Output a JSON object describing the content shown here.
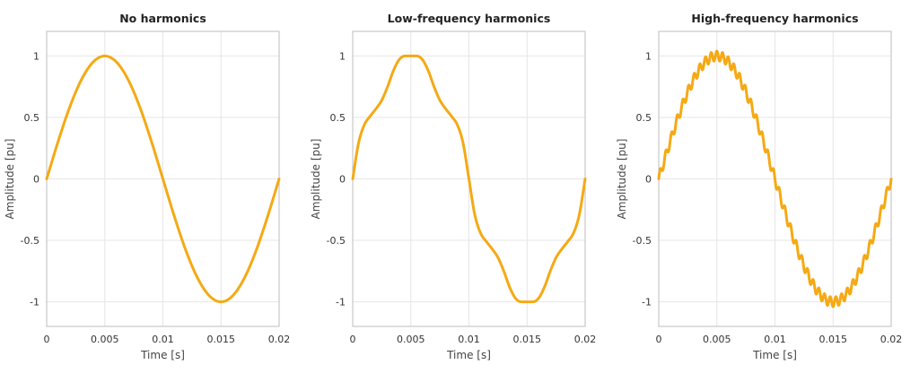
{
  "chart_data": [
    {
      "type": "line",
      "title": "No harmonics",
      "xlabel": "Time [s]",
      "ylabel": "Amplitude [pu]",
      "xlim": [
        0,
        0.02
      ],
      "ylim": [
        -1.2,
        1.2
      ],
      "x_ticks": [
        0,
        0.005,
        0.01,
        0.015,
        0.02
      ],
      "x_tick_labels": [
        "0",
        "0.005",
        "0.01",
        "0.015",
        "0.02"
      ],
      "y_ticks": [
        1,
        0.5,
        0,
        -0.5,
        -1
      ],
      "y_tick_labels": [
        "1",
        "0.5",
        "0",
        "-0.5",
        "-1"
      ],
      "grid": true,
      "color": "#f5a914",
      "series": [
        {
          "x": [
            0,
            0.001,
            0.002,
            0.003,
            0.004,
            0.005,
            0.006,
            0.007,
            0.008,
            0.009,
            0.01,
            0.011,
            0.012,
            0.013,
            0.014,
            0.015,
            0.016,
            0.017,
            0.018,
            0.019,
            0.02
          ],
          "values": [
            0,
            0.309,
            0.588,
            0.809,
            0.951,
            1.0,
            0.951,
            0.809,
            0.588,
            0.309,
            0,
            -0.309,
            -0.588,
            -0.809,
            -0.951,
            -1.0,
            -0.951,
            -0.809,
            -0.588,
            -0.309,
            0
          ]
        }
      ]
    },
    {
      "type": "line",
      "title": "Low-frequency harmonics",
      "xlabel": "Time [s]",
      "ylabel": "Amplitude [pu]",
      "xlim": [
        0,
        0.02
      ],
      "ylim": [
        -1.2,
        1.2
      ],
      "x_ticks": [
        0,
        0.005,
        0.01,
        0.015,
        0.02
      ],
      "x_tick_labels": [
        "0",
        "0.005",
        "0.01",
        "0.015",
        "0.02"
      ],
      "y_ticks": [
        1,
        0.5,
        0,
        -0.5,
        -1
      ],
      "y_tick_labels": [
        "1",
        "0.5",
        "0",
        "-0.5",
        "-1"
      ],
      "grid": true,
      "color": "#f5a914",
      "series": [
        {
          "x": [
            0,
            0.0005,
            0.001,
            0.0015,
            0.002,
            0.0025,
            0.003,
            0.0035,
            0.004,
            0.0045,
            0.005,
            0.0055,
            0.006,
            0.0065,
            0.007,
            0.0075,
            0.008,
            0.0085,
            0.009,
            0.0095,
            0.01,
            0.0105,
            0.011,
            0.0115,
            0.012,
            0.0125,
            0.013,
            0.0135,
            0.014,
            0.0145,
            0.015,
            0.0155,
            0.016,
            0.0165,
            0.017,
            0.0175,
            0.018,
            0.0185,
            0.019,
            0.0195,
            0.02
          ],
          "values": [
            0,
            0.29,
            0.44,
            0.51,
            0.57,
            0.64,
            0.75,
            0.88,
            0.97,
            1.0,
            1.0,
            1.0,
            0.97,
            0.88,
            0.75,
            0.64,
            0.57,
            0.51,
            0.44,
            0.29,
            0,
            -0.29,
            -0.44,
            -0.51,
            -0.57,
            -0.64,
            -0.75,
            -0.88,
            -0.97,
            -1.0,
            -1.0,
            -1.0,
            -0.97,
            -0.88,
            -0.75,
            -0.64,
            -0.57,
            -0.51,
            -0.44,
            -0.29,
            0
          ]
        }
      ]
    },
    {
      "type": "line",
      "title": "High-frequency harmonics",
      "xlabel": "Time [s]",
      "ylabel": "Amplitude [pu]",
      "xlim": [
        0,
        0.02
      ],
      "ylim": [
        -1.2,
        1.2
      ],
      "x_ticks": [
        0,
        0.005,
        0.01,
        0.015,
        0.02
      ],
      "x_tick_labels": [
        "0",
        "0.005",
        "0.01",
        "0.015",
        "0.02"
      ],
      "y_ticks": [
        1,
        0.5,
        0,
        -0.5,
        -1
      ],
      "y_tick_labels": [
        "1",
        "0.5",
        "0",
        "-0.5",
        "-1"
      ],
      "grid": true,
      "color": "#f5a914",
      "series": [
        {
          "x": [
            0,
            0.0005,
            0.001,
            0.0015,
            0.002,
            0.0025,
            0.003,
            0.0035,
            0.004,
            0.0045,
            0.005,
            0.0055,
            0.006,
            0.0065,
            0.007,
            0.0075,
            0.008,
            0.0085,
            0.009,
            0.0095,
            0.01,
            0.0105,
            0.011,
            0.0115,
            0.012,
            0.0125,
            0.013,
            0.0135,
            0.014,
            0.0145,
            0.015,
            0.0155,
            0.016,
            0.0165,
            0.017,
            0.0175,
            0.018,
            0.0185,
            0.019,
            0.0195,
            0.02
          ],
          "values": [
            0,
            0.156,
            0.309,
            0.454,
            0.588,
            0.707,
            0.809,
            0.891,
            0.951,
            0.988,
            1.0,
            0.988,
            0.951,
            0.891,
            0.809,
            0.707,
            0.588,
            0.454,
            0.309,
            0.156,
            0,
            -0.156,
            -0.309,
            -0.454,
            -0.588,
            -0.707,
            -0.809,
            -0.891,
            -0.951,
            -0.988,
            -1.0,
            -0.988,
            -0.951,
            -0.891,
            -0.809,
            -0.707,
            -0.588,
            -0.454,
            -0.309,
            -0.156,
            0
          ],
          "ripple_amplitude": 0.04,
          "ripple_cycles": 41
        }
      ]
    }
  ]
}
